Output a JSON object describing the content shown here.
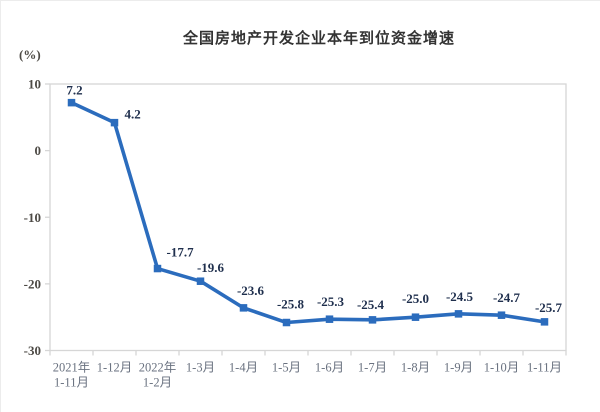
{
  "chart": {
    "title": "全国房地产开发企业本年到位资金增速",
    "unit_label": "(%)"
  },
  "chart_data": {
    "type": "line",
    "title": "全国房地产开发企业本年到位资金增速",
    "ylabel": "(%)",
    "xlabel": "",
    "categories": [
      "2021年\n1-11月",
      "1-12月",
      "2022年\n1-2月",
      "1-3月",
      "1-4月",
      "1-5月",
      "1-6月",
      "1-7月",
      "1-8月",
      "1-9月",
      "1-10月",
      "1-11月"
    ],
    "values": [
      7.2,
      4.2,
      -17.7,
      -19.6,
      -23.6,
      -25.8,
      -25.3,
      -25.4,
      -25.0,
      -24.5,
      -24.7,
      -25.7
    ],
    "labels": [
      "7.2",
      "4.2",
      "-17.7",
      "-19.6",
      "-23.6",
      "-25.8",
      "-25.3",
      "-25.4",
      "-25.0",
      "-24.5",
      "-24.7",
      "-25.7"
    ],
    "ylim": [
      -30,
      10
    ],
    "yticks": [
      10,
      0,
      -10,
      -20,
      -30
    ],
    "grid": false,
    "legend": false,
    "line_color": "#2b6cbd",
    "marker_color": "#2b6cbd",
    "label_color": "#1f2f4d",
    "axis_color": "#d6d6d6",
    "tick_label_color": "#4d4a45",
    "x_label_color": "#6a7280"
  }
}
